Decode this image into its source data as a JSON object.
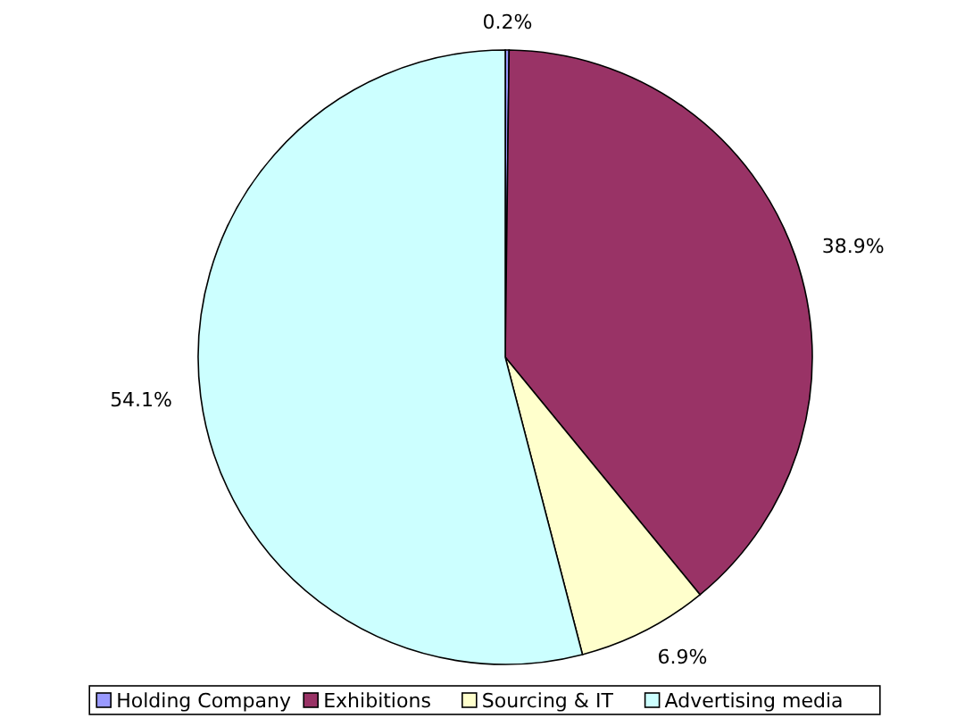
{
  "chart_data": {
    "type": "pie",
    "categories": [
      "Holding Company",
      "Exhibitions",
      "Sourcing & IT",
      "Advertising media"
    ],
    "values": [
      0.2,
      38.9,
      6.9,
      54.1
    ],
    "colors": [
      "#9999ff",
      "#993366",
      "#ffffcc",
      "#ccffff"
    ],
    "value_labels": [
      "0.2%",
      "38.9%",
      "6.9%",
      "54.1%"
    ],
    "legend": "bottom"
  }
}
